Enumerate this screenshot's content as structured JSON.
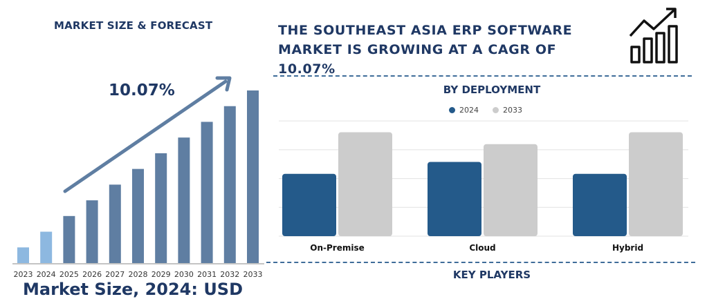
{
  "left_title": "MARKET SIZE & FORECAST",
  "headline": "THE SOUTHEAST ASIA ERP SOFTWARE MARKET IS GROWING AT A CAGR OF 10.07%",
  "cagr_label": "10.07%",
  "market_size_footer": "Market Size, 2024: USD",
  "deployment_title": "BY DEPLOYMENT",
  "key_players_title": "KEY PLAYERS",
  "icon": "growth-chart-icon",
  "colors": {
    "navy": "#1f3864",
    "forecast_bar": "#5f7ea2",
    "early_bar": "#8db8e0",
    "bar_2024": "#245a8a",
    "bar_2033": "#cccccc"
  },
  "chart_data": [
    {
      "type": "bar",
      "title": "MARKET SIZE & FORECAST",
      "categories": [
        "2023",
        "2024",
        "2025",
        "2026",
        "2027",
        "2028",
        "2029",
        "2030",
        "2031",
        "2032",
        "2033"
      ],
      "values": [
        1.0,
        2.0,
        3.0,
        4.0,
        5.0,
        6.0,
        7.0,
        8.0,
        9.0,
        10.0,
        11.0
      ],
      "annotation": "10.07%",
      "ylim": [
        0,
        11.5
      ]
    },
    {
      "type": "bar",
      "title": "BY DEPLOYMENT",
      "categories": [
        "On-Premise",
        "Cloud",
        "Hybrid"
      ],
      "series": [
        {
          "name": "2024",
          "values": [
            42,
            50,
            42
          ]
        },
        {
          "name": "2033",
          "values": [
            70,
            62,
            70
          ]
        }
      ],
      "legend": "top-center",
      "grid": true,
      "ylim": [
        0,
        80
      ]
    }
  ]
}
